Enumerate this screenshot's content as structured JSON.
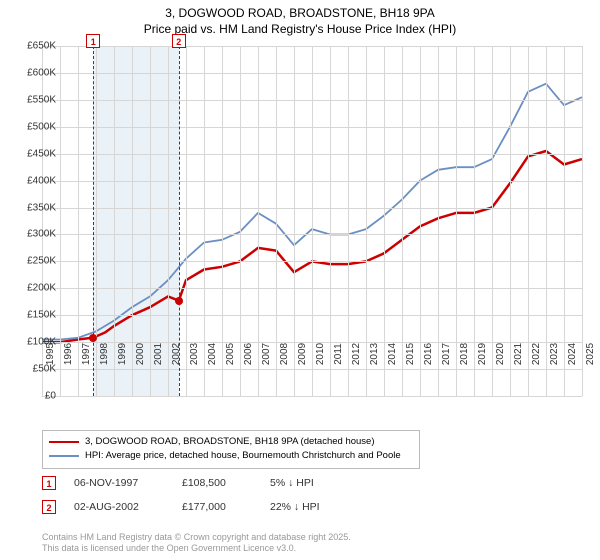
{
  "title": {
    "line1": "3, DOGWOOD ROAD, BROADSTONE, BH18 9PA",
    "line2": "Price paid vs. HM Land Registry's House Price Index (HPI)"
  },
  "chart": {
    "type": "line",
    "background_color": "#ffffff",
    "grid_color": "#d6d6d6",
    "highlight_band_color": "#eaf2f8",
    "highlight_bands": [
      {
        "x_start": 1997.85,
        "x_end": 2002.6
      }
    ],
    "dashed_markers": [
      {
        "x": 1997.85,
        "label": "1",
        "box_y": -12
      },
      {
        "x": 2002.6,
        "label": "2",
        "box_y": -12
      }
    ],
    "y_axis": {
      "min": 0,
      "max": 650000,
      "step": 50000,
      "prefix": "£",
      "suffix": "K",
      "divisor": 1000,
      "tick_fontsize": 10
    },
    "x_axis": {
      "min": 1995,
      "max": 2025,
      "step": 1,
      "tick_fontsize": 10
    },
    "series": [
      {
        "name": "property",
        "label": "3, DOGWOOD ROAD, BROADSTONE, BH18 9PA (detached house)",
        "color": "#cc0000",
        "line_width": 2.5,
        "points": [
          [
            1995,
            100000
          ],
          [
            1996,
            100000
          ],
          [
            1997,
            105000
          ],
          [
            1997.85,
            108500
          ],
          [
            1998.5,
            118000
          ],
          [
            1999,
            130000
          ],
          [
            2000,
            150000
          ],
          [
            2001,
            165000
          ],
          [
            2002,
            185000
          ],
          [
            2002.6,
            177000
          ],
          [
            2003,
            215000
          ],
          [
            2004,
            235000
          ],
          [
            2005,
            240000
          ],
          [
            2006,
            250000
          ],
          [
            2007,
            275000
          ],
          [
            2008,
            270000
          ],
          [
            2009,
            230000
          ],
          [
            2010,
            250000
          ],
          [
            2011,
            245000
          ],
          [
            2012,
            245000
          ],
          [
            2013,
            250000
          ],
          [
            2014,
            265000
          ],
          [
            2015,
            290000
          ],
          [
            2016,
            315000
          ],
          [
            2017,
            330000
          ],
          [
            2018,
            340000
          ],
          [
            2019,
            340000
          ],
          [
            2020,
            350000
          ],
          [
            2021,
            395000
          ],
          [
            2022,
            445000
          ],
          [
            2023,
            455000
          ],
          [
            2024,
            430000
          ],
          [
            2025,
            440000
          ]
        ],
        "sale_dots": [
          {
            "x": 1997.85,
            "y": 108500
          },
          {
            "x": 2002.6,
            "y": 177000
          }
        ]
      },
      {
        "name": "hpi",
        "label": "HPI: Average price, detached house, Bournemouth Christchurch and Poole",
        "color": "#6a8fc5",
        "line_width": 1.8,
        "points": [
          [
            1995,
            105000
          ],
          [
            1996,
            105000
          ],
          [
            1997,
            108000
          ],
          [
            1998,
            120000
          ],
          [
            1999,
            140000
          ],
          [
            2000,
            165000
          ],
          [
            2001,
            185000
          ],
          [
            2002,
            215000
          ],
          [
            2003,
            255000
          ],
          [
            2004,
            285000
          ],
          [
            2005,
            290000
          ],
          [
            2006,
            305000
          ],
          [
            2007,
            340000
          ],
          [
            2008,
            320000
          ],
          [
            2009,
            280000
          ],
          [
            2010,
            310000
          ],
          [
            2011,
            300000
          ],
          [
            2012,
            300000
          ],
          [
            2013,
            310000
          ],
          [
            2014,
            335000
          ],
          [
            2015,
            365000
          ],
          [
            2016,
            400000
          ],
          [
            2017,
            420000
          ],
          [
            2018,
            425000
          ],
          [
            2019,
            425000
          ],
          [
            2020,
            440000
          ],
          [
            2021,
            500000
          ],
          [
            2022,
            565000
          ],
          [
            2023,
            580000
          ],
          [
            2024,
            540000
          ],
          [
            2025,
            555000
          ]
        ]
      }
    ]
  },
  "legend": {
    "items": [
      {
        "color": "#cc0000",
        "width": 2.5,
        "text": "3, DOGWOOD ROAD, BROADSTONE, BH18 9PA (detached house)"
      },
      {
        "color": "#6a8fc5",
        "width": 1.8,
        "text": "HPI: Average price, detached house, Bournemouth Christchurch and Poole"
      }
    ]
  },
  "sales": [
    {
      "marker": "1",
      "date": "06-NOV-1997",
      "price": "£108,500",
      "delta": "5% ↓ HPI"
    },
    {
      "marker": "2",
      "date": "02-AUG-2002",
      "price": "£177,000",
      "delta": "22% ↓ HPI"
    }
  ],
  "footer": {
    "line1": "Contains HM Land Registry data © Crown copyright and database right 2025.",
    "line2": "This data is licensed under the Open Government Licence v3.0."
  }
}
